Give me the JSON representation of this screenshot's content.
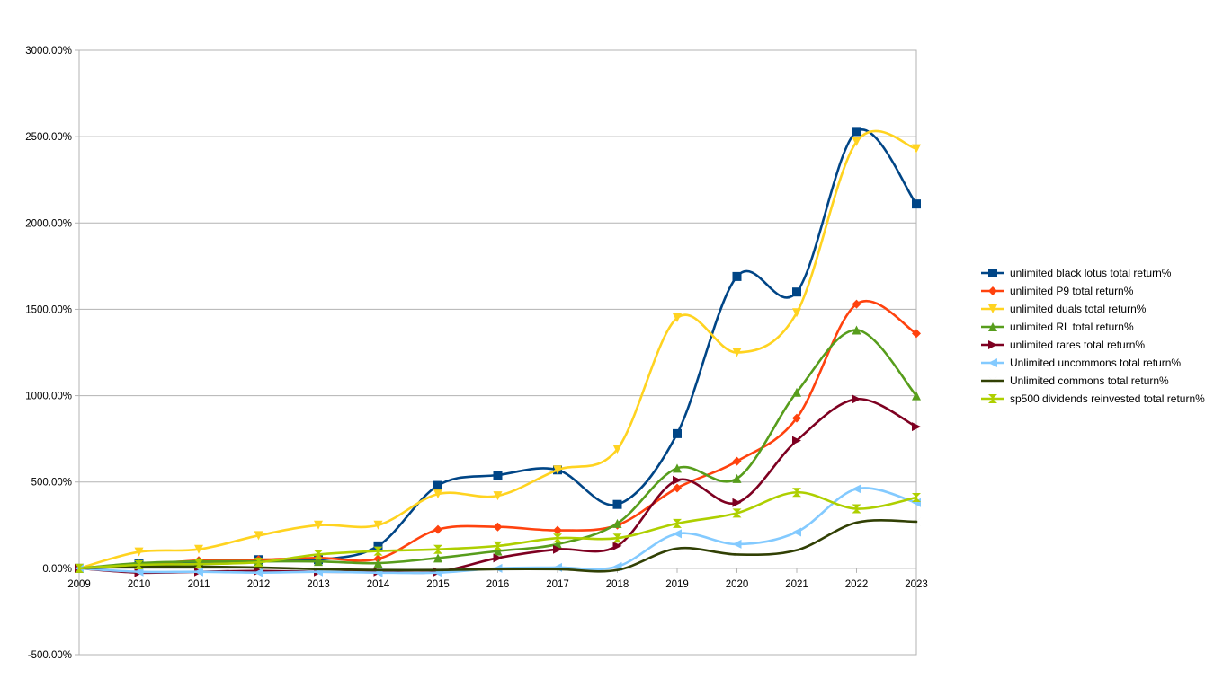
{
  "chart_data": {
    "type": "line",
    "smooth": true,
    "grid": true,
    "legend_position": "right",
    "x": [
      "2009",
      "2010",
      "2011",
      "2012",
      "2013",
      "2014",
      "2015",
      "2016",
      "2017",
      "2018",
      "2019",
      "2020",
      "2021",
      "2022",
      "2023"
    ],
    "ylim": [
      -500,
      3000
    ],
    "y_ticks": [
      -500,
      0,
      500,
      1000,
      1500,
      2000,
      2500,
      3000
    ],
    "y_tick_labels": [
      "-500.00%",
      "0.00%",
      "500.00%",
      "1000.00%",
      "1500.00%",
      "2000.00%",
      "2500.00%",
      "3000.00%"
    ],
    "series": [
      {
        "name": "unlimited black lotus total return%",
        "color": "#004586",
        "marker": "square",
        "values": [
          0,
          25,
          30,
          50,
          50,
          130,
          480,
          540,
          570,
          370,
          780,
          1690,
          1600,
          2530,
          2110
        ]
      },
      {
        "name": "unlimited P9 total return%",
        "color": "#ff420e",
        "marker": "diamond",
        "values": [
          0,
          20,
          45,
          50,
          60,
          55,
          225,
          240,
          220,
          250,
          465,
          620,
          870,
          1530,
          1360
        ]
      },
      {
        "name": "unlimited duals total return%",
        "color": "#ffd320",
        "marker": "triangle-down",
        "values": [
          0,
          95,
          110,
          190,
          250,
          250,
          430,
          420,
          570,
          690,
          1450,
          1250,
          1480,
          2470,
          2430
        ]
      },
      {
        "name": "unlimited RL total return%",
        "color": "#579d1c",
        "marker": "triangle-up",
        "values": [
          0,
          30,
          40,
          40,
          40,
          30,
          60,
          100,
          140,
          260,
          580,
          520,
          1020,
          1380,
          1000
        ]
      },
      {
        "name": "unlimited rares total return%",
        "color": "#7e0021",
        "marker": "triangle-right",
        "values": [
          0,
          -25,
          -20,
          -15,
          -20,
          -20,
          -20,
          60,
          110,
          130,
          510,
          380,
          740,
          980,
          820
        ]
      },
      {
        "name": "Unlimited uncommons total return%",
        "color": "#83caff",
        "marker": "triangle-left",
        "values": [
          0,
          -20,
          -20,
          -25,
          -20,
          -25,
          -25,
          0,
          5,
          10,
          200,
          140,
          210,
          460,
          380
        ]
      },
      {
        "name": "Unlimited commons total return%",
        "color": "#314004",
        "marker": "bowtie",
        "values": [
          0,
          10,
          10,
          5,
          -5,
          -10,
          -10,
          -5,
          -5,
          -10,
          115,
          80,
          105,
          265,
          270
        ]
      },
      {
        "name": "sp500 dividends reinvested total return%",
        "color": "#aecf00",
        "marker": "hourglass",
        "values": [
          0,
          20,
          25,
          35,
          80,
          100,
          110,
          130,
          175,
          175,
          260,
          320,
          440,
          345,
          410
        ]
      }
    ]
  }
}
